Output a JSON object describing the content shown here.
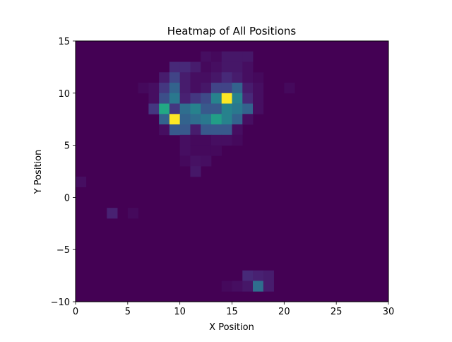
{
  "chart_data": {
    "type": "heatmap",
    "title": "Heatmap of All Positions",
    "xlabel": "X Position",
    "ylabel": "Y Position",
    "xlim": [
      0,
      30
    ],
    "ylim": [
      -10,
      15
    ],
    "x_ticks": [
      "0",
      "5",
      "10",
      "15",
      "20",
      "25",
      "30"
    ],
    "y_ticks": [
      "15",
      "10",
      "5",
      "0",
      "−5",
      "−10"
    ],
    "x_tick_values": [
      0,
      5,
      10,
      15,
      20,
      25,
      30
    ],
    "y_tick_values": [
      15,
      10,
      5,
      0,
      -5,
      -10
    ],
    "colormap": "viridis",
    "grid": false,
    "bins": {
      "x_edges_start": 0,
      "x_edges_end": 30,
      "nx": 30,
      "y_edges_start": -10,
      "y_edges_end": 15,
      "ny": 25
    },
    "background_value": 0,
    "cells": [
      {
        "x": 12,
        "y": 13,
        "v": 0.05
      },
      {
        "x": 13,
        "y": 13,
        "v": 0.03
      },
      {
        "x": 14,
        "y": 13,
        "v": 0.08
      },
      {
        "x": 15,
        "y": 13,
        "v": 0.08
      },
      {
        "x": 16,
        "y": 13,
        "v": 0.08
      },
      {
        "x": 9,
        "y": 12,
        "v": 0.15
      },
      {
        "x": 10,
        "y": 12,
        "v": 0.15
      },
      {
        "x": 11,
        "y": 12,
        "v": 0.1
      },
      {
        "x": 12,
        "y": 12,
        "v": 0.03
      },
      {
        "x": 13,
        "y": 12,
        "v": 0.05
      },
      {
        "x": 14,
        "y": 12,
        "v": 0.08
      },
      {
        "x": 15,
        "y": 12,
        "v": 0.08
      },
      {
        "x": 16,
        "y": 12,
        "v": 0.05
      },
      {
        "x": 8,
        "y": 11,
        "v": 0.1
      },
      {
        "x": 9,
        "y": 11,
        "v": 0.25
      },
      {
        "x": 10,
        "y": 11,
        "v": 0.1
      },
      {
        "x": 11,
        "y": 11,
        "v": 0.05
      },
      {
        "x": 12,
        "y": 11,
        "v": 0.05
      },
      {
        "x": 13,
        "y": 11,
        "v": 0.08
      },
      {
        "x": 14,
        "y": 11,
        "v": 0.15
      },
      {
        "x": 15,
        "y": 11,
        "v": 0.1
      },
      {
        "x": 16,
        "y": 11,
        "v": 0.05
      },
      {
        "x": 17,
        "y": 11,
        "v": 0.03
      },
      {
        "x": 6,
        "y": 10,
        "v": 0.03
      },
      {
        "x": 7,
        "y": 10,
        "v": 0.05
      },
      {
        "x": 8,
        "y": 10,
        "v": 0.2
      },
      {
        "x": 9,
        "y": 10,
        "v": 0.4
      },
      {
        "x": 10,
        "y": 10,
        "v": 0.1
      },
      {
        "x": 11,
        "y": 10,
        "v": 0.05
      },
      {
        "x": 12,
        "y": 10,
        "v": 0.08
      },
      {
        "x": 13,
        "y": 10,
        "v": 0.25
      },
      {
        "x": 14,
        "y": 10,
        "v": 0.25
      },
      {
        "x": 15,
        "y": 10,
        "v": 0.4
      },
      {
        "x": 16,
        "y": 10,
        "v": 0.1
      },
      {
        "x": 17,
        "y": 10,
        "v": 0.05
      },
      {
        "x": 20,
        "y": 10,
        "v": 0.03
      },
      {
        "x": 7,
        "y": 9,
        "v": 0.05
      },
      {
        "x": 8,
        "y": 9,
        "v": 0.3
      },
      {
        "x": 9,
        "y": 9,
        "v": 0.5
      },
      {
        "x": 10,
        "y": 9,
        "v": 0.12
      },
      {
        "x": 11,
        "y": 9,
        "v": 0.2
      },
      {
        "x": 12,
        "y": 9,
        "v": 0.28
      },
      {
        "x": 13,
        "y": 9,
        "v": 0.55
      },
      {
        "x": 14,
        "y": 9,
        "v": 1.0
      },
      {
        "x": 15,
        "y": 9,
        "v": 0.55
      },
      {
        "x": 16,
        "y": 9,
        "v": 0.15
      },
      {
        "x": 17,
        "y": 9,
        "v": 0.05
      },
      {
        "x": 7,
        "y": 8,
        "v": 0.2
      },
      {
        "x": 8,
        "y": 8,
        "v": 0.75
      },
      {
        "x": 9,
        "y": 8,
        "v": 0.2
      },
      {
        "x": 10,
        "y": 8,
        "v": 0.45
      },
      {
        "x": 11,
        "y": 8,
        "v": 0.55
      },
      {
        "x": 12,
        "y": 8,
        "v": 0.35
      },
      {
        "x": 13,
        "y": 8,
        "v": 0.35
      },
      {
        "x": 14,
        "y": 8,
        "v": 0.55
      },
      {
        "x": 15,
        "y": 8,
        "v": 0.5
      },
      {
        "x": 16,
        "y": 8,
        "v": 0.4
      },
      {
        "x": 17,
        "y": 8,
        "v": 0.05
      },
      {
        "x": 8,
        "y": 7,
        "v": 0.4
      },
      {
        "x": 9,
        "y": 7,
        "v": 1.0
      },
      {
        "x": 10,
        "y": 7,
        "v": 0.4
      },
      {
        "x": 11,
        "y": 7,
        "v": 0.45
      },
      {
        "x": 12,
        "y": 7,
        "v": 0.5
      },
      {
        "x": 13,
        "y": 7,
        "v": 0.7
      },
      {
        "x": 14,
        "y": 7,
        "v": 0.55
      },
      {
        "x": 15,
        "y": 7,
        "v": 0.4
      },
      {
        "x": 16,
        "y": 7,
        "v": 0.05
      },
      {
        "x": 8,
        "y": 6,
        "v": 0.05
      },
      {
        "x": 9,
        "y": 6,
        "v": 0.35
      },
      {
        "x": 10,
        "y": 6,
        "v": 0.35
      },
      {
        "x": 11,
        "y": 6,
        "v": 0.1
      },
      {
        "x": 12,
        "y": 6,
        "v": 0.35
      },
      {
        "x": 13,
        "y": 6,
        "v": 0.35
      },
      {
        "x": 14,
        "y": 6,
        "v": 0.35
      },
      {
        "x": 15,
        "y": 6,
        "v": 0.05
      },
      {
        "x": 10,
        "y": 5,
        "v": 0.05
      },
      {
        "x": 11,
        "y": 5,
        "v": 0.03
      },
      {
        "x": 12,
        "y": 5,
        "v": 0.03
      },
      {
        "x": 13,
        "y": 5,
        "v": 0.05
      },
      {
        "x": 14,
        "y": 5,
        "v": 0.05
      },
      {
        "x": 15,
        "y": 5,
        "v": 0.03
      },
      {
        "x": 10,
        "y": 4,
        "v": 0.05
      },
      {
        "x": 11,
        "y": 4,
        "v": 0.03
      },
      {
        "x": 12,
        "y": 4,
        "v": 0.03
      },
      {
        "x": 13,
        "y": 4,
        "v": 0.03
      },
      {
        "x": 10,
        "y": 3,
        "v": 0.03
      },
      {
        "x": 11,
        "y": 3,
        "v": 0.06
      },
      {
        "x": 12,
        "y": 3,
        "v": 0.05
      },
      {
        "x": 11,
        "y": 2,
        "v": 0.08
      },
      {
        "x": 0,
        "y": 1,
        "v": 0.05
      },
      {
        "x": 3,
        "y": -2,
        "v": 0.12
      },
      {
        "x": 5,
        "y": -2,
        "v": 0.03
      },
      {
        "x": 16,
        "y": -8,
        "v": 0.15
      },
      {
        "x": 17,
        "y": -8,
        "v": 0.12
      },
      {
        "x": 18,
        "y": -8,
        "v": 0.1
      },
      {
        "x": 14,
        "y": -9,
        "v": 0.03
      },
      {
        "x": 15,
        "y": -9,
        "v": 0.05
      },
      {
        "x": 16,
        "y": -9,
        "v": 0.08
      },
      {
        "x": 17,
        "y": -9,
        "v": 0.45
      },
      {
        "x": 18,
        "y": -9,
        "v": 0.1
      }
    ]
  }
}
